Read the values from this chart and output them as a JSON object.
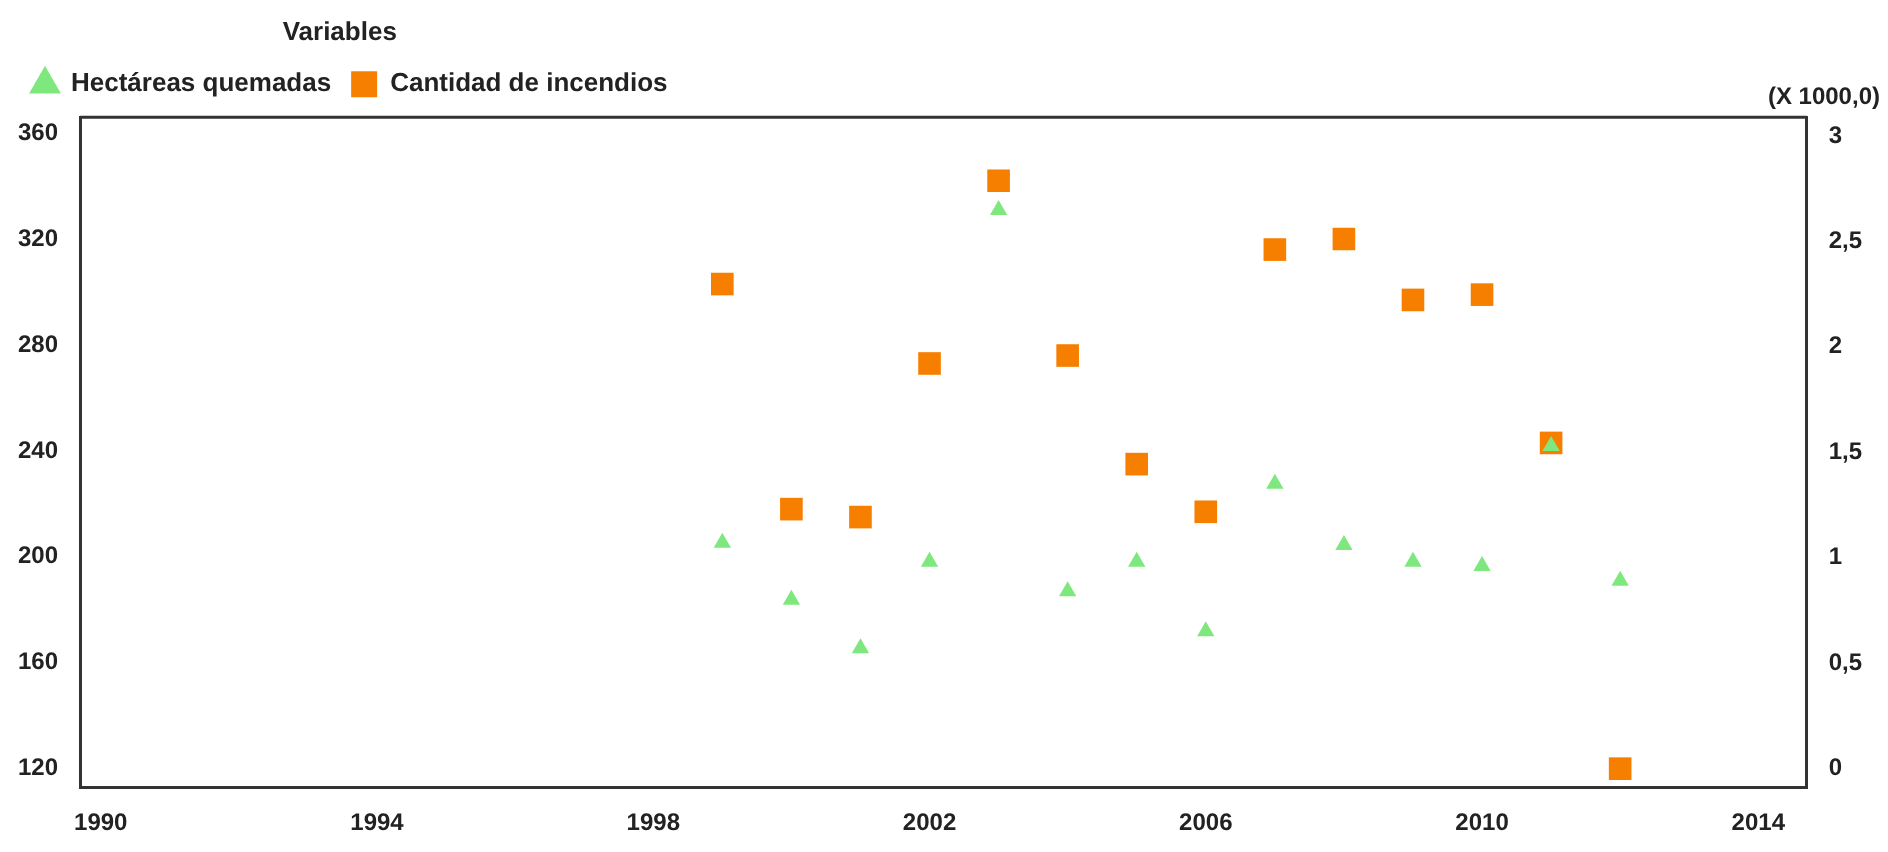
{
  "chart_data": {
    "type": "scatter",
    "legend_title": "Variables",
    "y2label": "(X 1000,0)",
    "x": [
      1999,
      2000,
      2001,
      2002,
      2003,
      2004,
      2005,
      2006,
      2007,
      2008,
      2009,
      2010,
      2011,
      2012
    ],
    "series": [
      {
        "name": "Cantidad de incendios",
        "color": "#f77f00",
        "marker": "square",
        "values": [
          303,
          218,
          215,
          273,
          342,
          276,
          235,
          217,
          316,
          320,
          297,
          299,
          243,
          120
        ]
      },
      {
        "name": "Hectáreas quemadas",
        "color": "#7ee87e",
        "marker": "triangle",
        "axis": "y2",
        "values": [
          1.07,
          0.8,
          0.57,
          0.98,
          2.65,
          0.84,
          0.98,
          0.65,
          1.35,
          1.06,
          0.98,
          0.96,
          1.53,
          0.89
        ]
      }
    ],
    "xlim": [
      1989.7,
      2014.7
    ],
    "xticks": [
      1990,
      1994,
      1998,
      2002,
      2006,
      2010,
      2014
    ],
    "ylim": [
      113,
      366
    ],
    "yticks": [
      120,
      160,
      200,
      240,
      280,
      320,
      360
    ],
    "y2lim": [
      -0.09,
      3.09
    ],
    "y2ticks": [
      0,
      {
        "value": 0.5,
        "label": "0,5"
      },
      1,
      {
        "value": 1.5,
        "label": "1,5"
      },
      2,
      {
        "value": 2.5,
        "label": "2,5"
      },
      3
    ],
    "grid": false,
    "legend": "top left"
  }
}
